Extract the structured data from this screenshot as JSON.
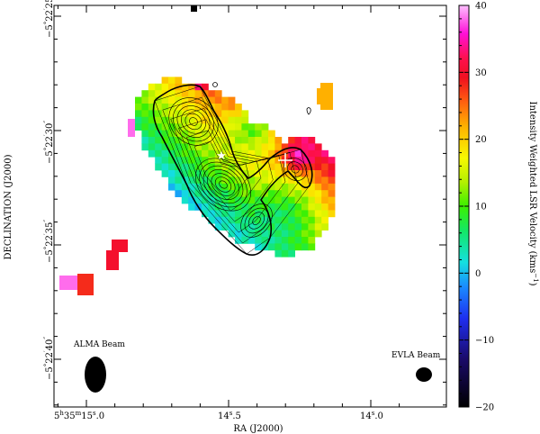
{
  "chart_data": {
    "type": "heatmap",
    "xlabel": "RA (J2000)",
    "ylabel": "DECLINATION (J2000)",
    "colorbar_label": "Intensity Weighted LSR Velocity (kms",
    "colorbar_label_sup": "−1",
    "colorbar_label_close": ")",
    "colorbar_range": [
      -20,
      40
    ],
    "colorbar_ticks": [
      {
        "value": 40,
        "label": "40"
      },
      {
        "value": 30,
        "label": "30"
      },
      {
        "value": 20,
        "label": "20"
      },
      {
        "value": 10,
        "label": "10"
      },
      {
        "value": 0,
        "label": "0"
      },
      {
        "value": -10,
        "label": "−10"
      },
      {
        "value": -20,
        "label": "−20"
      }
    ],
    "x_ticks": [
      {
        "ra_s": 15.0,
        "h": "5",
        "m": "35",
        "s": "15",
        "f": "0"
      },
      {
        "ra_s": 14.5,
        "h": "",
        "m": "",
        "s": "14",
        "f": "5"
      },
      {
        "ra_s": 14.0,
        "h": "",
        "m": "",
        "s": "14",
        "f": "0"
      }
    ],
    "y_ticks": [
      {
        "dec_s": 25,
        "d": "−5",
        "m": "22",
        "s": "25"
      },
      {
        "dec_s": 30,
        "d": "−5",
        "m": "22",
        "s": "30"
      },
      {
        "dec_s": 35,
        "d": "−5",
        "m": "22",
        "s": "35"
      },
      {
        "dec_s": 40,
        "d": "−5",
        "m": "22",
        "s": "40"
      }
    ],
    "annotations": [
      {
        "text": "ALMA Beam"
      },
      {
        "text": "EVLA Beam"
      }
    ],
    "grid": false
  }
}
